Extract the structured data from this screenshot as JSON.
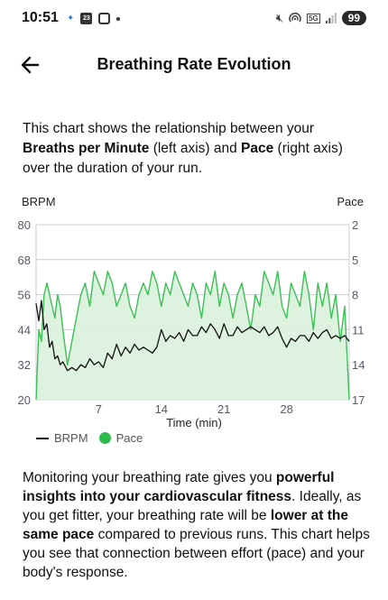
{
  "status_bar": {
    "time": "10:51",
    "calendar_day": "23",
    "battery": "99",
    "network": "5G"
  },
  "header": {
    "title": "Breathing Rate Evolution"
  },
  "intro": {
    "t1": "This chart shows the relationship between your ",
    "b1": "Breaths per Minute",
    "t2": " (left axis) and ",
    "b2": "Pace",
    "t3": " (right axis) over the duration of your run."
  },
  "outro": {
    "t1": "Monitoring your breathing rate gives you ",
    "b1": "powerful insights into your cardiovascular fitness",
    "t2": ". Ideally, as you get fitter, your breathing rate will be ",
    "b2": "lower at the same pace",
    "t3": " compared to previous runs. This chart helps you see that connection between effort (pace) and your body's response."
  },
  "legend": {
    "brpm": "BRPM",
    "pace": "Pace"
  },
  "colors": {
    "pace_line": "#3cbf55",
    "pace_fill": "#d9f2dc",
    "brpm_line": "#111111",
    "axis_text": "#555a6a",
    "grid": "#c9ccd6"
  },
  "chart_data": {
    "type": "line",
    "xlabel": "Time (min)",
    "ylabel_left": "BRPM",
    "ylabel_right": "Pace",
    "x_ticks": [
      7,
      14,
      21,
      28
    ],
    "left_ticks": [
      80,
      68,
      56,
      44,
      32,
      20
    ],
    "right_ticks": [
      2,
      5,
      8,
      11,
      14,
      17
    ],
    "xlim": [
      0,
      35
    ],
    "ylim_left": [
      20,
      80
    ],
    "ylim_right": [
      2,
      17
    ],
    "right_axis_inverted": true,
    "grid": true,
    "legend_position": "bottom-left",
    "series": [
      {
        "name": "BRPM",
        "axis": "left",
        "x": [
          0,
          0.3,
          0.6,
          0.9,
          1.2,
          1.5,
          1.8,
          2.1,
          2.4,
          2.7,
          3.0,
          3.5,
          4,
          4.5,
          5,
          5.5,
          6,
          6.5,
          7,
          7.5,
          8,
          8.5,
          9,
          9.5,
          10,
          10.5,
          11,
          11.5,
          12,
          12.5,
          13,
          13.5,
          14,
          14.5,
          15,
          15.5,
          16,
          16.5,
          17,
          17.5,
          18,
          18.5,
          19,
          19.5,
          20,
          20.5,
          21,
          21.5,
          22,
          22.5,
          23,
          23.5,
          24,
          24.5,
          25,
          25.5,
          26,
          26.5,
          27,
          27.5,
          28,
          28.5,
          29,
          29.5,
          30,
          30.5,
          31,
          31.5,
          32,
          32.5,
          33,
          33.5,
          34,
          34.5,
          35
        ],
        "values": [
          53,
          47,
          54,
          44,
          46,
          38,
          40,
          34,
          35,
          32,
          33,
          30,
          31,
          30,
          32,
          31,
          34,
          32,
          33,
          31,
          36,
          34,
          39,
          35,
          38,
          36,
          39,
          37,
          38,
          37,
          36,
          38,
          44,
          40,
          42,
          41,
          43,
          40,
          44,
          42,
          42,
          45,
          43,
          46,
          44,
          41,
          46,
          42,
          42,
          45,
          43,
          44,
          45,
          44,
          43,
          45,
          42,
          43,
          45,
          41,
          38,
          41,
          40,
          42,
          42,
          40,
          43,
          41,
          43,
          44,
          41,
          42,
          41,
          42,
          40
        ]
      },
      {
        "name": "Pace",
        "axis": "right",
        "x": [
          0,
          0.3,
          0.6,
          0.9,
          1.2,
          1.5,
          1.8,
          2.1,
          2.4,
          2.7,
          3.0,
          3.5,
          4,
          4.5,
          5,
          5.5,
          6,
          6.5,
          7,
          7.5,
          8,
          8.5,
          9,
          9.5,
          10,
          10.5,
          11,
          11.5,
          12,
          12.5,
          13,
          13.5,
          14,
          14.5,
          15,
          15.5,
          16,
          16.5,
          17,
          17.5,
          18,
          18.5,
          19,
          19.5,
          20,
          20.5,
          21,
          21.5,
          22,
          22.5,
          23,
          23.5,
          24,
          24.5,
          25,
          25.5,
          26,
          26.5,
          27,
          27.5,
          28,
          28.5,
          29,
          29.5,
          30,
          30.5,
          31,
          31.5,
          32,
          32.5,
          33,
          33.5,
          34,
          34.5,
          35
        ],
        "values": [
          17,
          11,
          12,
          8,
          7,
          8,
          9,
          10,
          8,
          9,
          11,
          14,
          12,
          10,
          8,
          7,
          9,
          6,
          7,
          8,
          6,
          7,
          9,
          8,
          7,
          9,
          10,
          8,
          7,
          8,
          6,
          7,
          9,
          7,
          8,
          6,
          7,
          8,
          9,
          7,
          8,
          10,
          7,
          8,
          6,
          9,
          7,
          8,
          10,
          8,
          7,
          9,
          11,
          8,
          9,
          6,
          7,
          8,
          6,
          9,
          10,
          7,
          8,
          9,
          6,
          8,
          11,
          7,
          9,
          7,
          10,
          8,
          12,
          9,
          17
        ]
      }
    ]
  }
}
